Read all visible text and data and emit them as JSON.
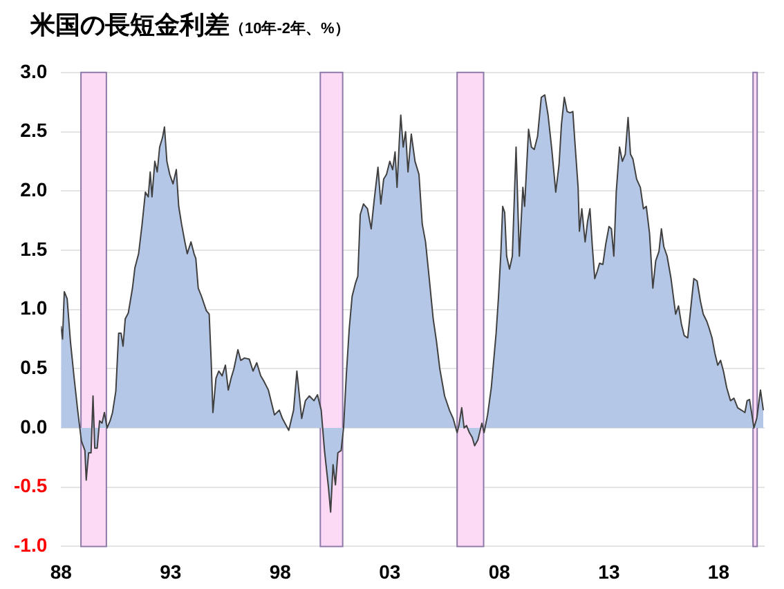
{
  "chart_data": {
    "type": "area",
    "title": "米国の長短金利差",
    "subtitle": "（10年-2年、%）",
    "x": [
      1988.0,
      1988.07,
      1988.15,
      1988.28,
      1988.43,
      1988.6,
      1988.76,
      1988.93,
      1989.09,
      1989.15,
      1989.26,
      1989.37,
      1989.46,
      1989.54,
      1989.65,
      1989.76,
      1989.87,
      1989.98,
      1990.1,
      1990.24,
      1990.35,
      1990.5,
      1990.63,
      1990.74,
      1990.83,
      1990.93,
      1991.07,
      1991.26,
      1991.37,
      1991.54,
      1991.7,
      1991.85,
      1991.98,
      1992.07,
      1992.15,
      1992.28,
      1992.39,
      1992.5,
      1992.63,
      1992.72,
      1992.83,
      1992.96,
      1993.11,
      1993.26,
      1993.37,
      1993.5,
      1993.65,
      1993.76,
      1993.93,
      1994.07,
      1994.15,
      1994.26,
      1994.41,
      1994.63,
      1994.76,
      1994.85,
      1994.93,
      1995.07,
      1995.2,
      1995.35,
      1995.5,
      1995.63,
      1995.76,
      1995.89,
      1996.07,
      1996.2,
      1996.37,
      1996.59,
      1996.76,
      1996.93,
      1997.11,
      1997.24,
      1997.46,
      1997.74,
      1997.96,
      1998.1,
      1998.39,
      1998.61,
      1998.76,
      1998.98,
      1999.15,
      1999.33,
      1999.54,
      1999.7,
      1999.87,
      2000.02,
      2000.2,
      2000.3,
      2000.41,
      2000.52,
      2000.63,
      2000.78,
      2000.89,
      2001.02,
      2001.15,
      2001.28,
      2001.43,
      2001.54,
      2001.65,
      2001.8,
      2001.98,
      2002.15,
      2002.28,
      2002.46,
      2002.59,
      2002.72,
      2002.85,
      2003.0,
      2003.13,
      2003.24,
      2003.33,
      2003.43,
      2003.5,
      2003.61,
      2003.72,
      2003.83,
      2003.98,
      2004.15,
      2004.33,
      2004.48,
      2004.63,
      2004.8,
      2004.98,
      2005.13,
      2005.28,
      2005.5,
      2005.72,
      2005.89,
      2006.07,
      2006.15,
      2006.28,
      2006.39,
      2006.5,
      2006.63,
      2006.76,
      2006.87,
      2007.02,
      2007.2,
      2007.3,
      2007.46,
      2007.63,
      2007.74,
      2007.85,
      2007.96,
      2008.07,
      2008.15,
      2008.24,
      2008.33,
      2008.46,
      2008.59,
      2008.76,
      2008.91,
      2009.07,
      2009.15,
      2009.33,
      2009.46,
      2009.59,
      2009.74,
      2009.91,
      2010.07,
      2010.22,
      2010.39,
      2010.57,
      2010.72,
      2010.83,
      2010.96,
      2011.09,
      2011.22,
      2011.35,
      2011.43,
      2011.59,
      2011.65,
      2011.76,
      2011.91,
      2012.02,
      2012.13,
      2012.24,
      2012.35,
      2012.46,
      2012.57,
      2012.72,
      2012.85,
      2013.0,
      2013.11,
      2013.22,
      2013.33,
      2013.48,
      2013.61,
      2013.74,
      2013.87,
      2013.98,
      2014.09,
      2014.26,
      2014.43,
      2014.57,
      2014.7,
      2014.85,
      2015.0,
      2015.13,
      2015.28,
      2015.39,
      2015.5,
      2015.65,
      2015.83,
      2016.04,
      2016.17,
      2016.3,
      2016.43,
      2016.59,
      2016.74,
      2016.87,
      2017.02,
      2017.17,
      2017.3,
      2017.46,
      2017.57,
      2017.7,
      2017.83,
      2017.96,
      2018.09,
      2018.22,
      2018.37,
      2018.54,
      2018.7,
      2018.87,
      2019.04,
      2019.2,
      2019.3,
      2019.41,
      2019.52,
      2019.61,
      2019.74,
      2019.91,
      2020.04
    ],
    "series": [
      {
        "color": "#b4c7e7",
        "values": [
          0.86,
          0.75,
          1.15,
          1.09,
          0.73,
          0.42,
          0.15,
          -0.11,
          -0.19,
          -0.44,
          -0.21,
          -0.21,
          0.27,
          -0.17,
          -0.17,
          0.06,
          0.04,
          0.13,
          0.0,
          0.06,
          0.13,
          0.31,
          0.8,
          0.8,
          0.69,
          0.92,
          0.97,
          1.18,
          1.35,
          1.47,
          1.72,
          1.99,
          1.95,
          2.16,
          1.95,
          2.25,
          2.16,
          2.37,
          2.45,
          2.54,
          2.25,
          2.14,
          2.06,
          2.18,
          1.87,
          1.72,
          1.57,
          1.47,
          1.57,
          1.47,
          1.43,
          1.18,
          1.11,
          0.99,
          0.96,
          0.57,
          0.13,
          0.42,
          0.48,
          0.44,
          0.53,
          0.32,
          0.42,
          0.5,
          0.66,
          0.57,
          0.59,
          0.58,
          0.48,
          0.55,
          0.44,
          0.4,
          0.32,
          0.11,
          0.15,
          0.08,
          -0.02,
          0.15,
          0.48,
          0.08,
          0.23,
          0.27,
          0.23,
          0.28,
          0.15,
          -0.19,
          -0.5,
          -0.71,
          -0.31,
          -0.48,
          -0.21,
          -0.19,
          0.0,
          0.46,
          0.84,
          1.11,
          1.22,
          1.28,
          1.8,
          1.89,
          1.85,
          1.68,
          1.91,
          2.2,
          1.89,
          2.1,
          2.14,
          2.25,
          2.18,
          2.33,
          2.03,
          2.41,
          2.64,
          2.37,
          2.5,
          2.16,
          2.48,
          2.25,
          2.14,
          1.72,
          1.57,
          1.26,
          0.92,
          0.73,
          0.5,
          0.27,
          0.15,
          0.08,
          -0.04,
          0.02,
          0.17,
          0.0,
          0.02,
          -0.04,
          -0.08,
          -0.15,
          -0.1,
          0.04,
          -0.04,
          0.11,
          0.34,
          0.57,
          0.8,
          1.11,
          1.49,
          1.87,
          1.82,
          1.45,
          1.34,
          1.45,
          2.37,
          1.45,
          2.03,
          1.87,
          2.52,
          2.37,
          2.35,
          2.46,
          2.79,
          2.81,
          2.64,
          2.35,
          1.99,
          2.22,
          2.56,
          2.79,
          2.67,
          2.66,
          2.67,
          2.45,
          2.03,
          1.66,
          1.85,
          1.57,
          1.74,
          1.85,
          1.53,
          1.26,
          1.32,
          1.39,
          1.38,
          1.55,
          1.7,
          1.68,
          1.45,
          1.99,
          2.37,
          2.25,
          2.31,
          2.62,
          2.31,
          2.27,
          2.1,
          2.03,
          1.85,
          1.87,
          1.64,
          1.18,
          1.41,
          1.49,
          1.68,
          1.53,
          1.45,
          1.26,
          0.96,
          1.03,
          0.88,
          0.78,
          0.76,
          1.03,
          1.26,
          1.24,
          1.07,
          0.96,
          0.9,
          0.84,
          0.76,
          0.63,
          0.53,
          0.57,
          0.48,
          0.34,
          0.23,
          0.25,
          0.17,
          0.15,
          0.13,
          0.23,
          0.24,
          0.11,
          0.0,
          0.08,
          0.32,
          0.15
        ]
      }
    ],
    "xlim": [
      1988,
      2020.1
    ],
    "xticks": [
      {
        "value": 1988,
        "label": "88"
      },
      {
        "value": 1993,
        "label": "93"
      },
      {
        "value": 1998,
        "label": "98"
      },
      {
        "value": 2003,
        "label": "03"
      },
      {
        "value": 2008,
        "label": "08"
      },
      {
        "value": 2013,
        "label": "13"
      },
      {
        "value": 2018,
        "label": "18"
      }
    ],
    "ylim": [
      -1,
      3
    ],
    "yticks": [
      {
        "value": -1,
        "label": "-1.0"
      },
      {
        "value": -0.5,
        "label": "-0.5"
      },
      {
        "value": 0,
        "label": "0.0"
      },
      {
        "value": 0.5,
        "label": "0.5"
      },
      {
        "value": 1,
        "label": "1.0"
      },
      {
        "value": 1.5,
        "label": "1.5"
      },
      {
        "value": 2,
        "label": "2.0"
      },
      {
        "value": 2.5,
        "label": "2.5"
      },
      {
        "value": 3,
        "label": "3.0"
      }
    ],
    "bands": [
      {
        "axis": "x",
        "from": 1988.91,
        "to": 1990.07,
        "color": "#fcd9f5"
      },
      {
        "axis": "x",
        "from": 1999.83,
        "to": 2000.85,
        "color": "#fcd9f5"
      },
      {
        "axis": "x",
        "from": 2006.07,
        "to": 2007.28,
        "color": "#fcd9f5"
      },
      {
        "axis": "x",
        "from": 2019.57,
        "to": 2019.76,
        "color": "#fcd9f5"
      }
    ],
    "grid": "y",
    "legend": false,
    "marker": "none",
    "line_style": "solid"
  }
}
